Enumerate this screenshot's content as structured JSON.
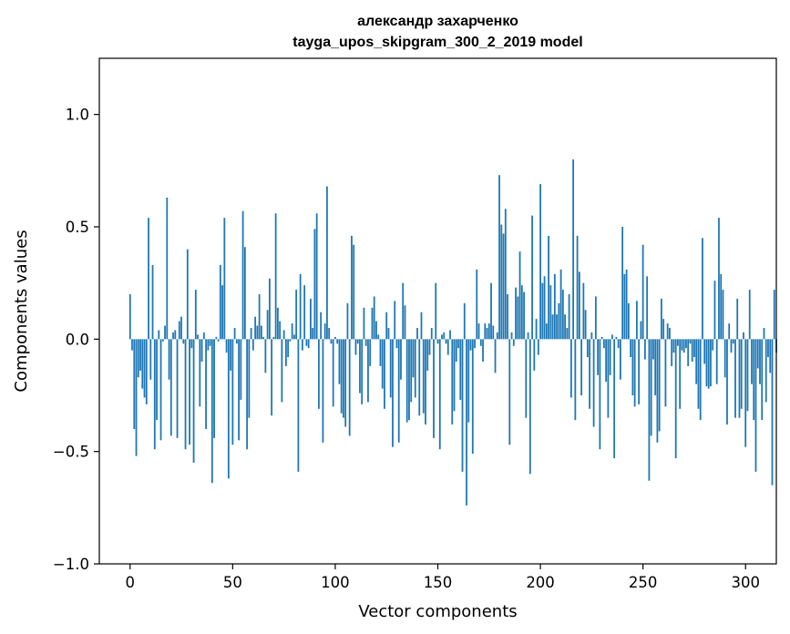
{
  "chart_data": {
    "type": "bar",
    "title_line1": "александр захарченко",
    "title_line2": "tayga_upos_skipgram_300_2_2019 model",
    "xlabel": "Vector components",
    "ylabel": "Components values",
    "xlim": [
      -15,
      315
    ],
    "ylim": [
      -1.0,
      1.25
    ],
    "x_ticks": [
      0,
      50,
      100,
      150,
      200,
      250,
      300
    ],
    "x_tick_labels": [
      "0",
      "50",
      "100",
      "150",
      "200",
      "250",
      "300"
    ],
    "y_ticks": [
      -1.0,
      -0.5,
      0.0,
      0.5,
      1.0
    ],
    "y_tick_labels": [
      "−1.0",
      "−0.5",
      "0.0",
      "0.5",
      "1.0"
    ],
    "bar_color": "#1f77b4",
    "values": [
      0.2,
      -0.05,
      -0.4,
      -0.52,
      -0.17,
      -0.14,
      -0.22,
      -0.26,
      -0.29,
      0.54,
      -0.18,
      0.33,
      -0.49,
      -0.36,
      0.04,
      -0.45,
      -0.01,
      0.06,
      0.63,
      -0.18,
      -0.43,
      0.03,
      0.04,
      -0.44,
      0.08,
      0.1,
      -0.02,
      -0.49,
      0.4,
      -0.47,
      -0.04,
      -0.55,
      0.22,
      0.02,
      -0.3,
      -0.1,
      0.03,
      -0.4,
      -0.05,
      -0.03,
      -0.64,
      -0.44,
      0.01,
      -0.01,
      0.33,
      0.24,
      0.54,
      -0.06,
      -0.62,
      -0.14,
      -0.47,
      0.05,
      -0.02,
      -0.45,
      -0.27,
      0.57,
      0.41,
      -0.49,
      -0.35,
      0.05,
      -0.05,
      0.1,
      0.06,
      0.2,
      0.06,
      0.01,
      -0.15,
      0.13,
      0.27,
      -0.34,
      0.01,
      0.56,
      0.14,
      0.08,
      -0.28,
      0.04,
      -0.12,
      -0.08,
      -0.01,
      0.07,
      0.02,
      0.22,
      -0.59,
      0.29,
      -0.05,
      0.24,
      -0.03,
      -0.04,
      0.18,
      0.05,
      0.49,
      0.56,
      -0.31,
      0.12,
      -0.46,
      0.07,
      0.68,
      0.05,
      -0.02,
      -0.3,
      0.01,
      -0.02,
      -0.2,
      -0.33,
      -0.35,
      -0.39,
      0.16,
      -0.43,
      0.46,
      0.42,
      -0.07,
      -0.02,
      -0.24,
      -0.29,
      0.14,
      -0.03,
      -0.28,
      -0.12,
      0.14,
      0.19,
      0.08,
      0.02,
      -0.12,
      -0.22,
      -0.31,
      0.12,
      0.05,
      -0.26,
      -0.48,
      0.17,
      -0.04,
      -0.46,
      -0.18,
      0.25,
      0.15,
      -0.37,
      -0.36,
      -0.28,
      -0.17,
      -0.26,
      0.05,
      -0.34,
      0.12,
      -0.33,
      -0.38,
      -0.14,
      -0.07,
      0.05,
      -0.44,
      0.25,
      -0.02,
      -0.49,
      0.02,
      0.03,
      -0.02,
      -0.07,
      0.04,
      -0.38,
      -0.32,
      -0.1,
      -0.04,
      -0.27,
      -0.59,
      0.16,
      -0.74,
      -0.37,
      -0.05,
      -0.51,
      -0.04,
      0.31,
      0.07,
      -0.03,
      -0.1,
      0.07,
      0.05,
      0.07,
      0.25,
      0.06,
      -0.15,
      0.03,
      0.73,
      0.51,
      0.47,
      0.58,
      0.2,
      -0.47,
      0.03,
      -0.03,
      0.23,
      0.19,
      0.39,
      0.24,
      0.21,
      -0.35,
      0.03,
      -0.6,
      0.55,
      -0.14,
      0.09,
      -0.07,
      0.69,
      0.25,
      0.28,
      0.07,
      0.46,
      0.24,
      0.11,
      0.29,
      0.11,
      0.16,
      0.31,
      0.22,
      0.11,
      0.05,
      0.2,
      -0.26,
      0.8,
      -0.36,
      0.46,
      0.3,
      -0.25,
      0.25,
      0.13,
      -0.08,
      -0.31,
      0.03,
      -0.39,
      0.19,
      -0.16,
      -0.49,
      0.01,
      -0.04,
      -0.19,
      -0.35,
      -0.16,
      0.02,
      -0.53,
      0.01,
      -0.04,
      -0.18,
      0.5,
      0.29,
      0.31,
      0.16,
      -0.08,
      -0.25,
      -0.3,
      0.17,
      -0.29,
      0.08,
      0.42,
      -0.09,
      0.28,
      -0.63,
      -0.43,
      -0.09,
      -0.25,
      -0.46,
      -0.41,
      0.18,
      0.09,
      -0.3,
      0.07,
      0.05,
      -0.12,
      -0.06,
      -0.53,
      -0.03,
      -0.31,
      -0.05,
      -0.06,
      -0.04,
      -0.12,
      -0.02,
      -0.1,
      -0.08,
      -0.2,
      -0.31,
      -0.36,
      0.45,
      -0.11,
      -0.21,
      -0.22,
      -0.21,
      -0.05,
      0.26,
      -0.2,
      0.54,
      0.29,
      0.22,
      -0.17,
      -0.38,
      0.07,
      -0.06,
      -0.02,
      -0.35,
      0.18,
      -0.35,
      -0.31,
      0.03,
      -0.48,
      -0.32,
      0.22,
      -0.2,
      -0.36,
      -0.59,
      -0.13,
      -0.2,
      -0.36,
      0.05,
      -0.28,
      -0.08,
      -0.15,
      -0.65,
      0.22,
      -0.06
    ]
  }
}
